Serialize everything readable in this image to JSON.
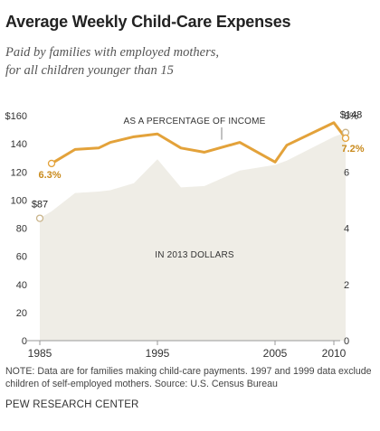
{
  "title": "Average Weekly Child-Care Expenses",
  "subtitle_line1": "Paid by families with employed mothers,",
  "subtitle_line2": "for all children younger than 15",
  "note": "NOTE: Data are for families making child-care payments. 1997 and 1999 data exclude children of self-employed mothers. Source: U.S. Census Bureau",
  "brand": "PEW RESEARCH CENTER",
  "colors": {
    "area": "#efede6",
    "line": "#e3a23a",
    "label": "#c98a1c"
  },
  "chart_data": {
    "type": "area",
    "xlabel": "",
    "x_ticks": [
      "1985",
      "1995",
      "2005",
      "2010"
    ],
    "xlim": [
      1985,
      2011.5
    ],
    "left_axis": {
      "ylim": [
        0,
        160
      ],
      "ticks": [
        "0",
        "20",
        "40",
        "60",
        "80",
        "100",
        "120",
        "140",
        "$160"
      ]
    },
    "right_axis": {
      "ylim": [
        0,
        8
      ],
      "ticks": [
        "0",
        "2",
        "4",
        "6",
        "8%"
      ]
    },
    "series": [
      {
        "name": "IN 2013 DOLLARS",
        "kind": "area",
        "axis": "left",
        "x": [
          1985,
          1986,
          1988,
          1990,
          1991,
          1993,
          1995,
          1997,
          1999,
          2002,
          2005,
          2006,
          2010,
          2011
        ],
        "values": [
          87,
          92,
          105,
          106,
          107,
          112,
          129,
          109,
          110,
          121,
          125,
          128,
          145,
          148
        ],
        "end_label": "$148",
        "start_label": "$87"
      },
      {
        "name": "AS A PERCENTAGE OF INCOME",
        "kind": "line",
        "axis": "right",
        "x": [
          1986,
          1988,
          1990,
          1991,
          1993,
          1995,
          1997,
          1999,
          2002,
          2005,
          2006,
          2010,
          2011
        ],
        "values": [
          6.3,
          6.8,
          6.85,
          7.05,
          7.25,
          7.35,
          6.85,
          6.7,
          7.05,
          6.35,
          6.95,
          7.75,
          7.2
        ],
        "start_label": "6.3%",
        "end_label": "7.2%"
      }
    ]
  }
}
